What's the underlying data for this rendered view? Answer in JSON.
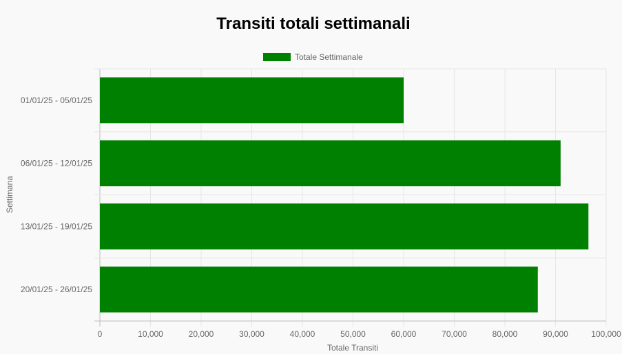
{
  "chart_data": {
    "type": "bar",
    "orientation": "horizontal",
    "title": "Transiti totali settimanali",
    "xlabel": "Totale Transiti",
    "ylabel": "Settimana",
    "categories": [
      "01/01/25 - 05/01/25",
      "06/01/25 - 12/01/25",
      "13/01/25 - 19/01/25",
      "20/01/25 - 26/01/25"
    ],
    "series": [
      {
        "name": "Totale Settimanale",
        "color": "#008000",
        "values": [
          60000,
          91000,
          96500,
          86500
        ]
      }
    ],
    "xlim": [
      0,
      100000
    ],
    "xticks": [
      "0",
      "10,000",
      "20,000",
      "30,000",
      "40,000",
      "50,000",
      "60,000",
      "70,000",
      "80,000",
      "90,000",
      "100,000"
    ],
    "grid": true,
    "legend_position": "top-center"
  }
}
